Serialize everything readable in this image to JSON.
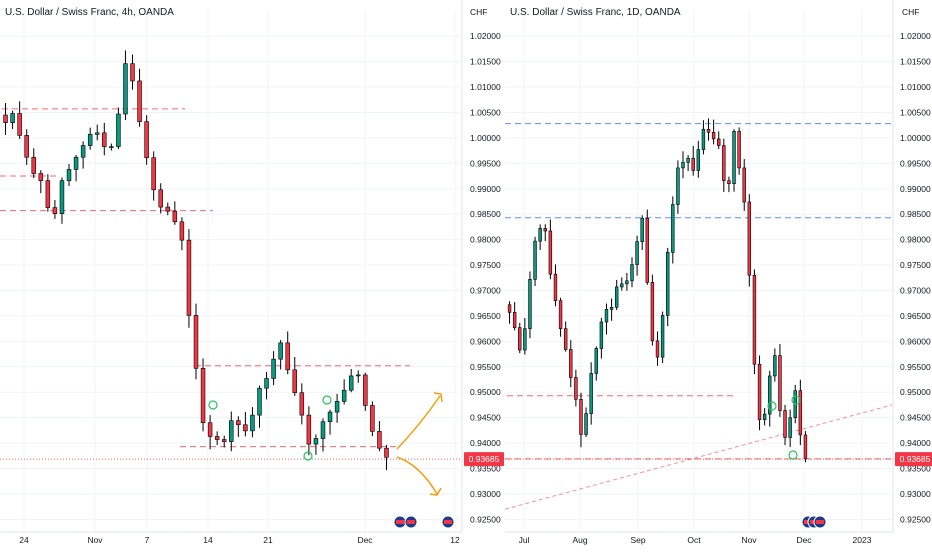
{
  "chart_data": [
    {
      "type": "candlestick",
      "title": "U.S. Dollar / Swiss Franc, 4h, OANDA",
      "unit": "CHF",
      "last_price": "0.93685",
      "y_ticks": [
        "1.02000",
        "1.01500",
        "1.01000",
        "1.00500",
        "1.00000",
        "0.99500",
        "0.99000",
        "0.98500",
        "0.98000",
        "0.97500",
        "0.97000",
        "0.96500",
        "0.96000",
        "0.95500",
        "0.95000",
        "0.94500",
        "0.94000",
        "0.93500",
        "0.93000",
        "0.92500"
      ],
      "ylim": [
        0.9235,
        1.0222
      ],
      "x_ticks": [
        "24",
        "Nov",
        "7",
        "14",
        "21",
        "Dec",
        "12"
      ],
      "levels": [
        {
          "price": 1.0057,
          "style": "dashed",
          "color": "#f23645"
        },
        {
          "price": 0.9925,
          "style": "dashed",
          "color": "#f23645"
        },
        {
          "price": 0.9857,
          "style": "dashed",
          "color": "#f23645"
        },
        {
          "price": 0.9552,
          "style": "dashed",
          "color": "#f23645"
        },
        {
          "price": 0.9393,
          "style": "dashed",
          "color": "#f23645"
        }
      ],
      "series": [
        {
          "values": [
            1.003,
            1.0048,
            1.0005,
            0.9962,
            0.993,
            0.9916,
            0.9863,
            0.9851,
            0.9916,
            0.9938,
            0.9962,
            0.9985,
            1.0007,
            1.001,
            0.9983,
            0.9983,
            1.0047,
            1.0146,
            1.0112,
            1.0032,
            0.9961,
            0.9898,
            0.9864,
            0.9856,
            0.9835,
            0.9799,
            0.9651,
            0.9547,
            0.944,
            0.9413,
            0.9407,
            0.9403,
            0.9444,
            0.9436,
            0.9424,
            0.9455,
            0.9508,
            0.9527,
            0.9565,
            0.9597,
            0.9544,
            0.9499,
            0.9455,
            0.9398,
            0.9409,
            0.9442,
            0.9461,
            0.9482,
            0.9504,
            0.9532,
            0.9534,
            0.9474,
            0.9423,
            0.939,
            0.9372
          ]
        }
      ],
      "annotations": [
        "arrow-up",
        "arrow-down",
        "event-icons"
      ]
    },
    {
      "type": "candlestick",
      "title": "U.S. Dollar / Swiss Franc, 1D, OANDA",
      "unit": "CHF",
      "last_price": "0.93685",
      "y_ticks": [
        "1.02000",
        "1.01500",
        "1.01000",
        "1.00500",
        "1.00000",
        "0.99500",
        "0.99000",
        "0.98500",
        "0.98000",
        "0.97500",
        "0.97000",
        "0.96500",
        "0.96000",
        "0.95500",
        "0.95000",
        "0.94500",
        "0.94000",
        "0.93500",
        "0.93000",
        "0.92500"
      ],
      "ylim": [
        0.9235,
        1.0222
      ],
      "x_ticks": [
        "Jul",
        "Aug",
        "Sep",
        "Oct",
        "Nov",
        "Dec",
        "2023"
      ],
      "levels": [
        {
          "price": 1.0028,
          "style": "dashed",
          "color": "#2962ff"
        },
        {
          "price": 0.9843,
          "style": "dashed",
          "color": "#2962ff"
        },
        {
          "price": 0.9493,
          "style": "dashed",
          "color": "#f23645"
        },
        {
          "price": 0.9369,
          "style": "dashed",
          "color": "#f23645"
        }
      ],
      "trendline": {
        "from": [
          0,
          0.927
        ],
        "to": [
          1,
          0.9475
        ]
      },
      "series": [
        {
          "values": [
            0.9657,
            0.9627,
            0.9583,
            0.9625,
            0.9722,
            0.9797,
            0.9822,
            0.9817,
            0.9732,
            0.968,
            0.9625,
            0.9584,
            0.9529,
            0.9486,
            0.9417,
            0.9458,
            0.9537,
            0.9586,
            0.9638,
            0.9663,
            0.9667,
            0.9707,
            0.9713,
            0.9719,
            0.9751,
            0.9796,
            0.9842,
            0.9716,
            0.9601,
            0.9569,
            0.9651,
            0.9775,
            0.9869,
            0.9941,
            0.9952,
            0.996,
            0.9936,
            0.9977,
            1.0017,
            1.0011,
            0.9998,
            0.9985,
            0.9916,
            0.991,
            1.0013,
            0.9941,
            0.9874,
            0.973,
            0.9555,
            0.9446,
            0.9457,
            0.9532,
            0.9572,
            0.9464,
            0.9411,
            0.945,
            0.9503,
            0.9416,
            0.9369
          ]
        }
      ],
      "annotations": [
        "event-icons"
      ]
    }
  ]
}
